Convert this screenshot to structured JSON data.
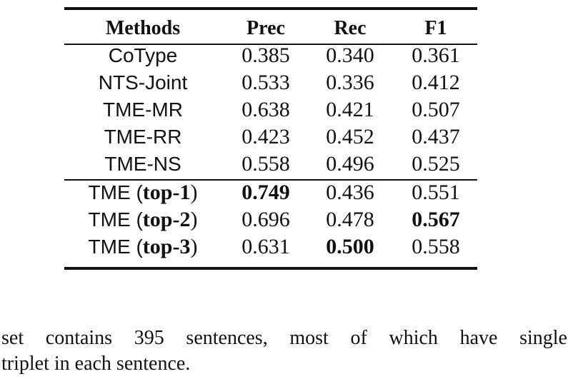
{
  "table": {
    "header": [
      "Methods",
      "Prec",
      "Rec",
      "F1"
    ],
    "rows": [
      {
        "method": "CoType",
        "values": [
          "0.385",
          "0.340",
          "0.361"
        ]
      },
      {
        "method": "NTS-Joint",
        "values": [
          "0.533",
          "0.336",
          "0.412"
        ]
      },
      {
        "method": "TME-MR",
        "values": [
          "0.638",
          "0.421",
          "0.507"
        ]
      },
      {
        "method": "TME-RR",
        "values": [
          "0.423",
          "0.452",
          "0.437"
        ]
      },
      {
        "method": "TME-NS",
        "values": [
          "0.558",
          "0.496",
          "0.525"
        ]
      },
      {
        "method": "TME (",
        "method_emph": "top-1",
        "method_end": ")",
        "values": [
          "0.749",
          "0.436",
          "0.551"
        ],
        "bold_value": 0
      },
      {
        "method": "TME (",
        "method_emph": "top-2",
        "method_end": ")",
        "values": [
          "0.696",
          "0.478",
          "0.567"
        ],
        "bold_value": 2
      },
      {
        "method": "TME (",
        "method_emph": "top-3",
        "method_end": ")",
        "values": [
          "0.631",
          "0.500",
          "0.558"
        ],
        "bold_value": 1
      }
    ],
    "group_break_after": 4
  },
  "paragraph": {
    "lines": [
      "set contains 395 sentences, most of which have single",
      "triplet in each sentence."
    ]
  }
}
